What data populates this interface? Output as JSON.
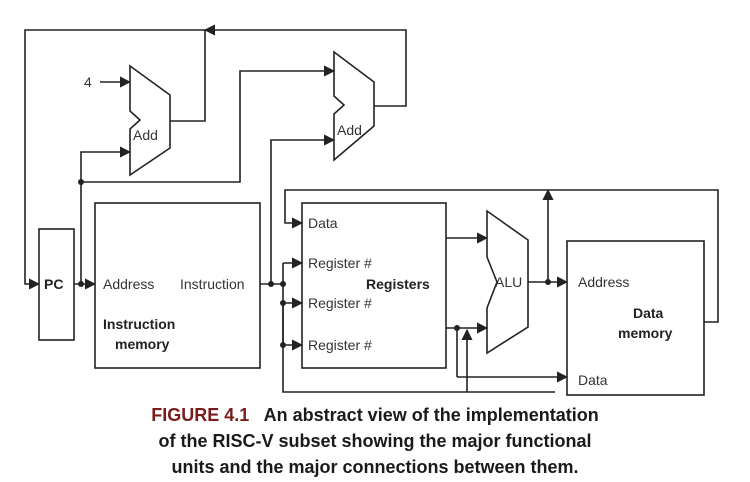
{
  "diagram": {
    "constant_four": "4",
    "add_top": "Add",
    "add_mid": "Add",
    "pc": "PC",
    "imem_address": "Address",
    "imem_instruction": "Instruction",
    "imem_title_line1": "Instruction",
    "imem_title_line2": "memory",
    "reg_data": "Data",
    "reg_num1": "Register #",
    "reg_num2": "Register #",
    "reg_num3": "Register #",
    "registers_title": "Registers",
    "alu": "ALU",
    "dmem_address": "Address",
    "dmem_data": "Data",
    "dmem_title_line1": "Data",
    "dmem_title_line2": "memory"
  },
  "caption": {
    "figure_label": "FIGURE 4.1",
    "line1": "An abstract view of the implementation",
    "line2": "of the RISC-V subset showing the major functional",
    "line3": "units and the major connections between them."
  }
}
